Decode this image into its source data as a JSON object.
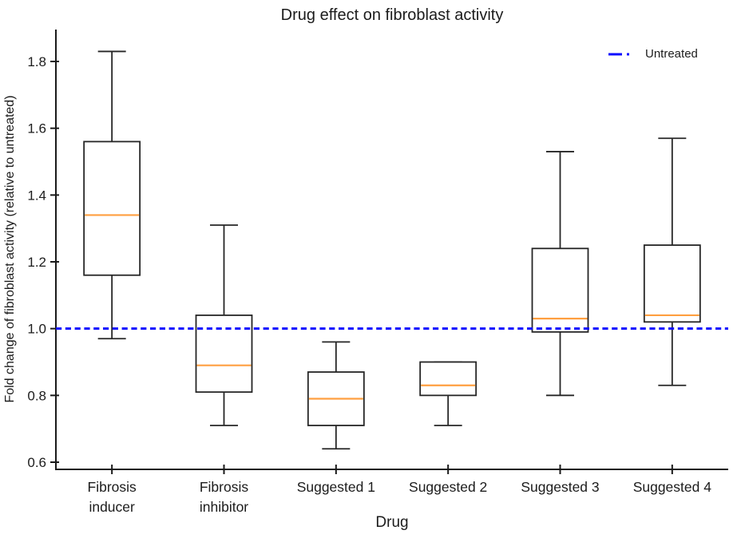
{
  "chart_data": {
    "type": "boxplot",
    "title": "Drug effect on fibroblast activity",
    "xlabel": "Drug",
    "ylabel": "Fold change of fibroblast activity (relative to untreated)",
    "categories": [
      "Fibrosis\ninducer",
      "Fibrosis\ninhibitor",
      "Suggested 1",
      "Suggested 2",
      "Suggested 3",
      "Suggested 4"
    ],
    "boxes": [
      {
        "label": "Fibrosis inducer",
        "whisker_low": 0.97,
        "q1": 1.16,
        "median": 1.34,
        "q3": 1.56,
        "whisker_high": 1.83
      },
      {
        "label": "Fibrosis inhibitor",
        "whisker_low": 0.71,
        "q1": 0.81,
        "median": 0.89,
        "q3": 1.04,
        "whisker_high": 1.31
      },
      {
        "label": "Suggested 1",
        "whisker_low": 0.64,
        "q1": 0.71,
        "median": 0.79,
        "q3": 0.87,
        "whisker_high": 0.96
      },
      {
        "label": "Suggested 2",
        "whisker_low": 0.71,
        "q1": 0.8,
        "median": 0.83,
        "q3": 0.9,
        "whisker_high": 0.9
      },
      {
        "label": "Suggested 3",
        "whisker_low": 0.8,
        "q1": 0.99,
        "median": 1.03,
        "q3": 1.24,
        "whisker_high": 1.53
      },
      {
        "label": "Suggested 4",
        "whisker_low": 0.83,
        "q1": 1.02,
        "median": 1.04,
        "q3": 1.25,
        "whisker_high": 1.57
      }
    ],
    "reference_line": {
      "value": 1.0,
      "label": "Untreated",
      "style": "dashed"
    },
    "yticks": [
      0.6,
      0.8,
      1.0,
      1.2,
      1.4,
      1.6,
      1.8
    ],
    "ytick_labels": [
      "0.6",
      "0.8",
      "1.0",
      "1.2",
      "1.4",
      "1.6",
      "1.8"
    ],
    "ylim": [
      0.58,
      1.9
    ],
    "grid": false,
    "legend_position": "upper right",
    "colors": {
      "box_edge": "#262626",
      "median": "#ff9f40",
      "reference": "#0d0dff",
      "axis": "#1a1a1a",
      "text": "#1c1c1c"
    }
  }
}
